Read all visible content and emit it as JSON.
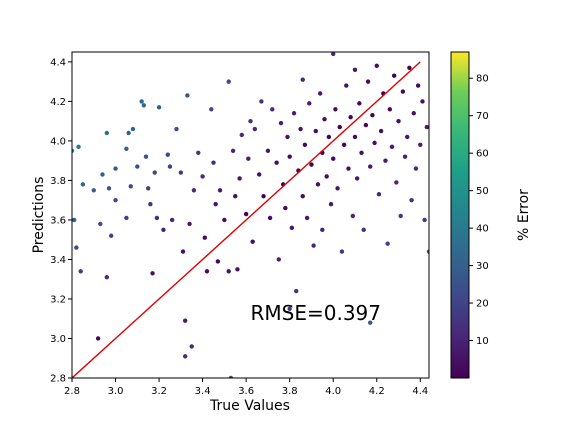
{
  "chart_data": {
    "type": "scatter",
    "xlabel": "True Values",
    "ylabel": "Predictions",
    "xlim": [
      2.8,
      4.44
    ],
    "ylim": [
      2.8,
      4.45
    ],
    "xticks": [
      "2.8",
      "3.0",
      "3.2",
      "3.4",
      "3.6",
      "3.8",
      "4.0",
      "4.2",
      "4.4"
    ],
    "yticks": [
      "2.8",
      "3.0",
      "3.2",
      "3.4",
      "3.6",
      "3.8",
      "4.0",
      "4.2",
      "4.4"
    ],
    "annotation": "RMSE=0.397",
    "annotation_pos": [
      3.62,
      3.13
    ],
    "reference_line": {
      "x": [
        2.8,
        4.4
      ],
      "y": [
        2.8,
        4.4
      ],
      "color": "#e00000"
    },
    "colorbar": {
      "label": "% Error",
      "range": [
        0,
        87
      ],
      "ticks": [
        "10",
        "20",
        "30",
        "40",
        "50",
        "60",
        "70",
        "80"
      ],
      "colormap": "viridis"
    },
    "grid": false,
    "points": [
      [
        2.8,
        3.95
      ],
      [
        2.81,
        3.6
      ],
      [
        2.82,
        3.46
      ],
      [
        2.83,
        3.97
      ],
      [
        2.84,
        3.34
      ],
      [
        2.85,
        3.78
      ],
      [
        2.9,
        3.75
      ],
      [
        2.92,
        3.0
      ],
      [
        2.93,
        3.58
      ],
      [
        2.94,
        3.83
      ],
      [
        2.96,
        3.31
      ],
      [
        2.96,
        4.04
      ],
      [
        2.97,
        3.76
      ],
      [
        2.98,
        3.52
      ],
      [
        3.0,
        3.7
      ],
      [
        3.0,
        3.86
      ],
      [
        3.05,
        3.96
      ],
      [
        3.05,
        3.61
      ],
      [
        3.06,
        4.04
      ],
      [
        3.07,
        3.77
      ],
      [
        3.08,
        4.06
      ],
      [
        3.1,
        3.87
      ],
      [
        3.12,
        4.2
      ],
      [
        3.13,
        4.18
      ],
      [
        3.14,
        3.92
      ],
      [
        3.15,
        3.76
      ],
      [
        3.16,
        3.68
      ],
      [
        3.17,
        3.33
      ],
      [
        3.18,
        3.84
      ],
      [
        3.19,
        3.61
      ],
      [
        3.2,
        4.17
      ],
      [
        3.22,
        3.55
      ],
      [
        3.24,
        3.93
      ],
      [
        3.25,
        3.87
      ],
      [
        3.26,
        3.6
      ],
      [
        3.28,
        4.06
      ],
      [
        3.3,
        3.84
      ],
      [
        3.31,
        3.44
      ],
      [
        3.32,
        3.09
      ],
      [
        3.32,
        2.91
      ],
      [
        3.33,
        4.23
      ],
      [
        3.34,
        3.58
      ],
      [
        3.35,
        2.96
      ],
      [
        3.36,
        3.75
      ],
      [
        3.38,
        3.94
      ],
      [
        3.4,
        3.82
      ],
      [
        3.41,
        3.51
      ],
      [
        3.42,
        3.34
      ],
      [
        3.44,
        4.16
      ],
      [
        3.45,
        3.89
      ],
      [
        3.46,
        3.68
      ],
      [
        3.47,
        3.39
      ],
      [
        3.48,
        3.75
      ],
      [
        3.5,
        3.6
      ],
      [
        3.52,
        4.3
      ],
      [
        3.52,
        3.34
      ],
      [
        3.53,
        2.8
      ],
      [
        3.54,
        3.95
      ],
      [
        3.55,
        3.72
      ],
      [
        3.56,
        3.35
      ],
      [
        3.57,
        3.81
      ],
      [
        3.58,
        4.03
      ],
      [
        3.6,
        3.63
      ],
      [
        3.61,
        3.91
      ],
      [
        3.62,
        4.1
      ],
      [
        3.63,
        3.49
      ],
      [
        3.64,
        4.06
      ],
      [
        3.66,
        3.83
      ],
      [
        3.67,
        4.2
      ],
      [
        3.68,
        3.72
      ],
      [
        3.7,
        3.95
      ],
      [
        3.71,
        3.61
      ],
      [
        3.72,
        4.16
      ],
      [
        3.74,
        3.89
      ],
      [
        3.75,
        3.4
      ],
      [
        3.76,
        4.09
      ],
      [
        3.77,
        3.78
      ],
      [
        3.78,
        3.66
      ],
      [
        3.79,
        4.02
      ],
      [
        3.8,
        3.15
      ],
      [
        3.8,
        3.92
      ],
      [
        3.81,
        3.56
      ],
      [
        3.82,
        4.14
      ],
      [
        3.83,
        3.24
      ],
      [
        3.84,
        3.85
      ],
      [
        3.85,
        4.06
      ],
      [
        3.86,
        3.72
      ],
      [
        3.86,
        4.31
      ],
      [
        3.87,
        3.98
      ],
      [
        3.88,
        3.61
      ],
      [
        3.89,
        4.19
      ],
      [
        3.9,
        3.88
      ],
      [
        3.91,
        3.47
      ],
      [
        3.92,
        4.05
      ],
      [
        3.93,
        3.78
      ],
      [
        3.94,
        4.24
      ],
      [
        3.95,
        3.94
      ],
      [
        3.95,
        3.55
      ],
      [
        3.96,
        4.11
      ],
      [
        3.97,
        3.82
      ],
      [
        3.98,
        4.02
      ],
      [
        3.99,
        3.68
      ],
      [
        4.0,
        4.44
      ],
      [
        4.0,
        3.91
      ],
      [
        4.01,
        4.16
      ],
      [
        4.02,
        3.76
      ],
      [
        4.03,
        4.07
      ],
      [
        4.04,
        3.44
      ],
      [
        4.05,
        3.98
      ],
      [
        4.06,
        4.28
      ],
      [
        4.07,
        3.86
      ],
      [
        4.08,
        4.12
      ],
      [
        4.09,
        3.62
      ],
      [
        4.1,
        4.02
      ],
      [
        4.1,
        4.36
      ],
      [
        4.11,
        3.81
      ],
      [
        4.12,
        4.19
      ],
      [
        4.13,
        3.94
      ],
      [
        4.14,
        3.55
      ],
      [
        4.15,
        4.08
      ],
      [
        4.16,
        4.3
      ],
      [
        4.17,
        3.08
      ],
      [
        4.17,
        3.87
      ],
      [
        4.18,
        4.13
      ],
      [
        4.19,
        3.99
      ],
      [
        4.2,
        4.38
      ],
      [
        4.21,
        3.73
      ],
      [
        4.22,
        4.05
      ],
      [
        4.23,
        4.24
      ],
      [
        4.24,
        3.9
      ],
      [
        4.25,
        3.48
      ],
      [
        4.26,
        4.16
      ],
      [
        4.27,
        3.97
      ],
      [
        4.28,
        4.33
      ],
      [
        4.29,
        3.79
      ],
      [
        4.3,
        4.1
      ],
      [
        4.31,
        3.62
      ],
      [
        4.32,
        4.25
      ],
      [
        4.33,
        3.92
      ],
      [
        4.34,
        4.02
      ],
      [
        4.35,
        4.37
      ],
      [
        4.36,
        3.7
      ],
      [
        4.37,
        4.14
      ],
      [
        4.38,
        3.86
      ],
      [
        4.39,
        4.28
      ],
      [
        4.4,
        3.98
      ],
      [
        4.41,
        4.2
      ],
      [
        4.42,
        3.6
      ],
      [
        4.43,
        4.07
      ],
      [
        4.44,
        3.44
      ]
    ]
  }
}
